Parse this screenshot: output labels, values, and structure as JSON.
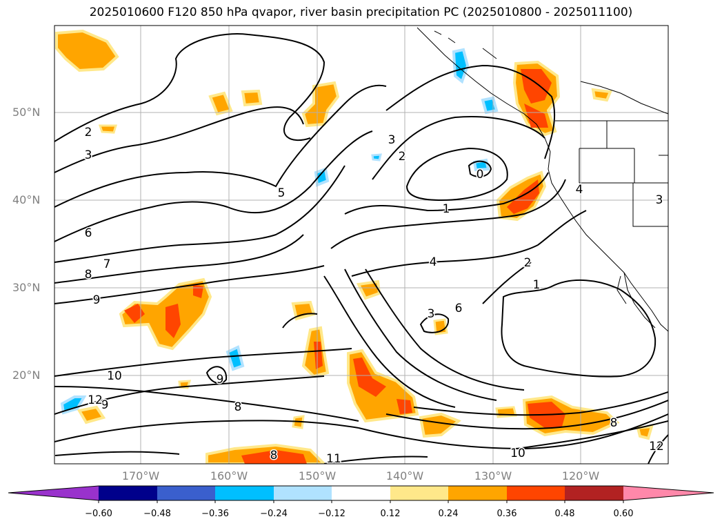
{
  "title": "2025010600 F120 850 hPa qvapor, river basin precipitation PC (2025010800 - 2025011100)",
  "lat_labels": [
    "50°N",
    "40°N",
    "30°N",
    "20°N"
  ],
  "lon_labels": [
    "170°W",
    "160°W",
    "150°W",
    "140°W",
    "130°W",
    "120°W"
  ],
  "contour_labels": [
    "2",
    "3",
    "5",
    "6",
    "7",
    "8",
    "9",
    "10",
    "11",
    "12",
    "1",
    "0",
    "4",
    "3",
    "2",
    "1",
    "3",
    "6",
    "10",
    "9",
    "8",
    "8",
    "9",
    "8",
    "12",
    "2",
    "3",
    "4"
  ],
  "colorbar": {
    "ticks": [
      "−0.60",
      "−0.48",
      "−0.36",
      "−0.24",
      "−0.12",
      "0.12",
      "0.24",
      "0.36",
      "0.48",
      "0.60"
    ],
    "colors": [
      "#9932cc",
      "#00008b",
      "#3a5fcd",
      "#00bfff",
      "#b0e2ff",
      "#ffffff",
      "#ffe88a",
      "#ffa500",
      "#ff4500",
      "#b22222",
      "#ff88aa"
    ]
  }
}
